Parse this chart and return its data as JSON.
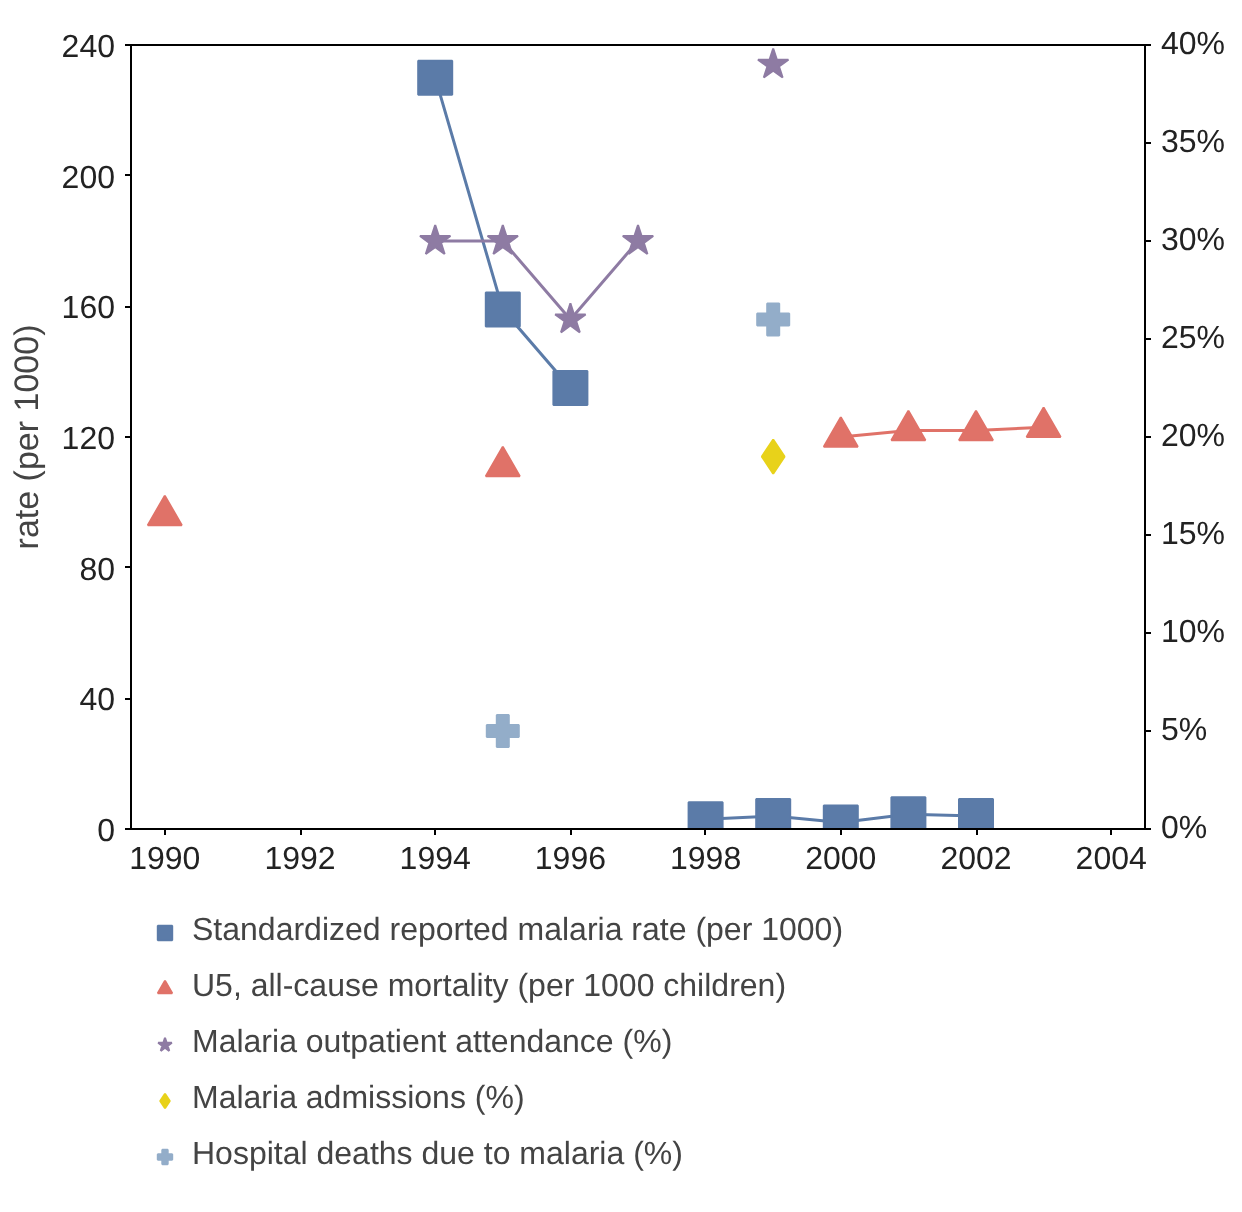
{
  "chart_data": {
    "type": "line",
    "ylabel": "rate (per 1000)",
    "xlim": [
      1989.5,
      2004.5
    ],
    "xticks": [
      1990,
      1992,
      1994,
      1996,
      1998,
      2000,
      2002,
      2004
    ],
    "ylim": [
      0,
      240
    ],
    "yticks": [
      0,
      40,
      80,
      120,
      160,
      200,
      240
    ],
    "y2lim": [
      0,
      40
    ],
    "y2ticks": [
      {
        "value": 0,
        "label": "0%"
      },
      {
        "value": 5,
        "label": "5%"
      },
      {
        "value": 10,
        "label": "10%"
      },
      {
        "value": 15,
        "label": "15%"
      },
      {
        "value": 20,
        "label": "20%"
      },
      {
        "value": 25,
        "label": "25%"
      },
      {
        "value": 30,
        "label": "30%"
      },
      {
        "value": 35,
        "label": "35%"
      },
      {
        "value": 40,
        "label": "40%"
      }
    ],
    "x": [
      1990,
      1994,
      1995,
      1996,
      1997,
      1998,
      1999,
      2000,
      2001,
      2002,
      2003
    ],
    "grid": false,
    "legend": "bottom",
    "series": [
      {
        "name": "Standardized reported malaria rate (per 1000)",
        "color": "#5b7ba8",
        "marker": "square",
        "values": [
          null,
          230,
          159,
          135,
          null,
          3,
          4,
          2,
          4.5,
          4,
          null
        ]
      },
      {
        "name": "U5, all-cause mortality (per 1000 children)",
        "color": "#e07268",
        "marker": "triangle",
        "values": [
          96,
          null,
          111,
          null,
          null,
          null,
          null,
          120,
          122,
          122,
          123
        ]
      },
      {
        "name": "Malaria outpatient attendance (%)",
        "color": "#8e7ba3",
        "marker": "star",
        "axis": "y2",
        "values": [
          null,
          30,
          30,
          26,
          30,
          null,
          39,
          null,
          null,
          null,
          null
        ]
      },
      {
        "name": "Malaria admissions (%)",
        "color": "#e8d21a",
        "marker": "diamond",
        "type": "scatter",
        "axis": "y2",
        "values": [
          null,
          null,
          null,
          null,
          null,
          null,
          19,
          null,
          null,
          null,
          null
        ]
      },
      {
        "name": "Hospital deaths due to malaria (%)",
        "color": "#93adc9",
        "marker": "cross",
        "type": "scatter",
        "axis": "y2",
        "values": [
          null,
          null,
          5,
          null,
          null,
          null,
          26,
          null,
          null,
          null,
          null
        ]
      }
    ]
  }
}
